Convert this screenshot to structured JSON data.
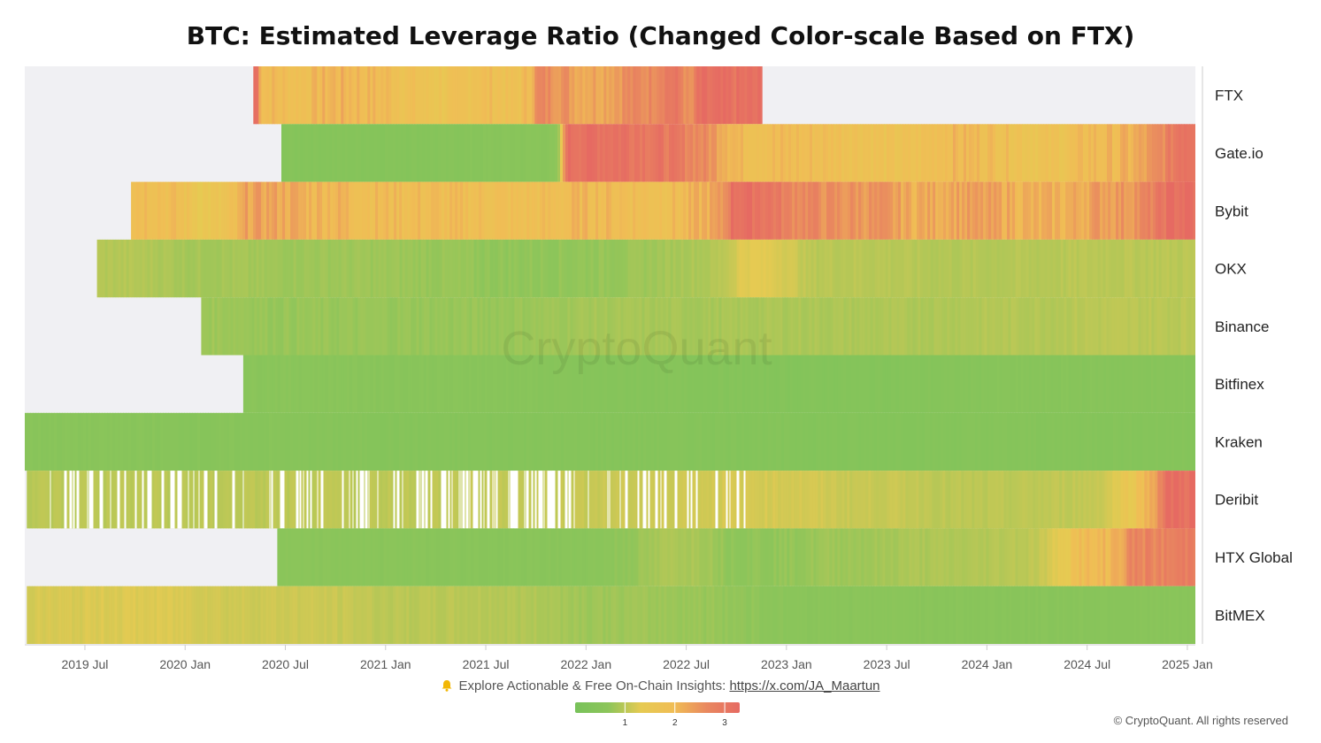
{
  "chart_data": {
    "type": "heatmap",
    "title": "BTC: Estimated Leverage Ratio (Changed Color-scale Based on FTX)",
    "watermark": "CryptoQuant",
    "x_ticks": [
      "2019 Jul",
      "2020 Jan",
      "2020 Jul",
      "2021 Jan",
      "2021 Jul",
      "2022 Jan",
      "2022 Jul",
      "2023 Jan",
      "2023 Jul",
      "2024 Jan",
      "2024 Jul",
      "2025 Jan"
    ],
    "x_range": [
      2019.2,
      2025.04
    ],
    "color_scale": {
      "min": 0,
      "max": 3.3,
      "ticks": [
        1,
        2,
        3
      ],
      "colors": [
        "#78c25a",
        "#8cc55a",
        "#e6ca52",
        "#f0bd55",
        "#e9885f",
        "#e66a62"
      ]
    },
    "series": [
      {
        "name": "FTX",
        "start": 2020.34,
        "end": 2022.88,
        "segments": [
          [
            2020.34,
            3.2
          ],
          [
            2020.37,
            2.0
          ],
          [
            2020.5,
            1.9
          ],
          [
            2020.7,
            2.1
          ],
          [
            2020.9,
            2.0
          ],
          [
            2021.1,
            1.8
          ],
          [
            2021.2,
            1.65
          ],
          [
            2021.45,
            1.9
          ],
          [
            2021.6,
            1.75
          ],
          [
            2021.75,
            2.6
          ],
          [
            2021.95,
            2.3
          ],
          [
            2022.2,
            2.6
          ],
          [
            2022.4,
            3.0
          ],
          [
            2022.5,
            2.4
          ],
          [
            2022.55,
            3.1
          ],
          [
            2022.88,
            3.1
          ]
        ]
      },
      {
        "name": "Gate.io",
        "start": 2020.48,
        "end": 2025.04,
        "segments": [
          [
            2020.48,
            0.45
          ],
          [
            2021.83,
            0.6
          ],
          [
            2021.89,
            3.2
          ],
          [
            2022.77,
            1.95
          ],
          [
            2023.5,
            1.7
          ],
          [
            2023.75,
            2.0
          ],
          [
            2024.2,
            1.7
          ],
          [
            2024.5,
            2.0
          ],
          [
            2024.96,
            3.2
          ],
          [
            2025.04,
            3.2
          ]
        ]
      },
      {
        "name": "Bybit",
        "start": 2019.73,
        "end": 2025.04,
        "segments": [
          [
            2019.73,
            2.0
          ],
          [
            2020.07,
            1.5
          ],
          [
            2020.3,
            2.3
          ],
          [
            2020.6,
            2.1
          ],
          [
            2020.9,
            1.95
          ],
          [
            2021.3,
            1.9
          ],
          [
            2021.6,
            1.85
          ],
          [
            2021.93,
            2.0
          ],
          [
            2022.3,
            1.9
          ],
          [
            2022.6,
            2.2
          ],
          [
            2022.72,
            3.2
          ],
          [
            2023.0,
            2.7
          ],
          [
            2023.2,
            2.5
          ],
          [
            2023.6,
            2.2
          ],
          [
            2023.8,
            2.3
          ],
          [
            2024.2,
            2.1
          ],
          [
            2024.55,
            2.4
          ],
          [
            2024.9,
            3.2
          ],
          [
            2025.04,
            3.2
          ]
        ]
      },
      {
        "name": "OKX",
        "start": 2019.56,
        "end": 2025.04,
        "segments": [
          [
            2019.56,
            0.95
          ],
          [
            2020.0,
            0.85
          ],
          [
            2020.4,
            0.8
          ],
          [
            2021.5,
            0.7
          ],
          [
            2022.5,
            0.9
          ],
          [
            2022.77,
            1.3
          ],
          [
            2023.1,
            1.0
          ],
          [
            2023.7,
            0.95
          ],
          [
            2024.5,
            1.0
          ],
          [
            2025.04,
            1.0
          ]
        ]
      },
      {
        "name": "Binance",
        "start": 2020.08,
        "end": 2025.04,
        "segments": [
          [
            2020.08,
            0.8
          ],
          [
            2020.4,
            0.75
          ],
          [
            2021.2,
            0.75
          ],
          [
            2022.0,
            0.85
          ],
          [
            2023.0,
            0.9
          ],
          [
            2024.0,
            0.95
          ],
          [
            2024.5,
            1.0
          ],
          [
            2025.04,
            1.0
          ]
        ]
      },
      {
        "name": "Bitfinex",
        "start": 2020.29,
        "end": 2025.04,
        "segments": [
          [
            2020.29,
            0.6
          ],
          [
            2021.0,
            0.55
          ],
          [
            2022.0,
            0.45
          ],
          [
            2023.0,
            0.4
          ],
          [
            2024.0,
            0.5
          ],
          [
            2025.04,
            0.5
          ]
        ]
      },
      {
        "name": "Kraken",
        "start": 2019.2,
        "end": 2025.04,
        "segments": [
          [
            2019.2,
            0.55
          ],
          [
            2020.0,
            0.5
          ],
          [
            2021.0,
            0.45
          ],
          [
            2022.0,
            0.45
          ],
          [
            2023.0,
            0.4
          ],
          [
            2024.0,
            0.45
          ],
          [
            2025.04,
            0.45
          ]
        ]
      },
      {
        "name": "Deribit",
        "start": 2019.21,
        "end": 2025.04,
        "segments": [
          [
            2019.21,
            1.0
          ],
          [
            2022.8,
            1.2
          ],
          [
            2023.3,
            1.1
          ],
          [
            2023.8,
            1.0
          ],
          [
            2024.4,
            1.05
          ],
          [
            2024.9,
            3.2
          ],
          [
            2025.04,
            3.2
          ]
        ]
      },
      {
        "name": "HTX Global",
        "start": 2020.46,
        "end": 2025.04,
        "segments": [
          [
            2020.46,
            0.6
          ],
          [
            2021.5,
            0.55
          ],
          [
            2022.4,
            0.9
          ],
          [
            2022.7,
            0.7
          ],
          [
            2023.2,
            0.8
          ],
          [
            2023.6,
            0.9
          ],
          [
            2024.1,
            1.0
          ],
          [
            2024.45,
            1.9
          ],
          [
            2024.72,
            2.7
          ],
          [
            2025.04,
            3.0
          ]
        ]
      },
      {
        "name": "BitMEX",
        "start": 2019.21,
        "end": 2025.04,
        "segments": [
          [
            2019.21,
            1.2
          ],
          [
            2019.6,
            1.25
          ],
          [
            2020.2,
            1.15
          ],
          [
            2021.0,
            1.0
          ],
          [
            2022.0,
            0.8
          ],
          [
            2023.0,
            0.6
          ],
          [
            2024.0,
            0.55
          ],
          [
            2025.04,
            0.55
          ]
        ]
      }
    ]
  },
  "footer": {
    "cta_text": "Explore Actionable & Free On-Chain Insights:",
    "cta_link": "https://x.com/JA_Maartun",
    "copyright": "© CryptoQuant. All rights reserved",
    "bell_icon": "bell-icon"
  }
}
